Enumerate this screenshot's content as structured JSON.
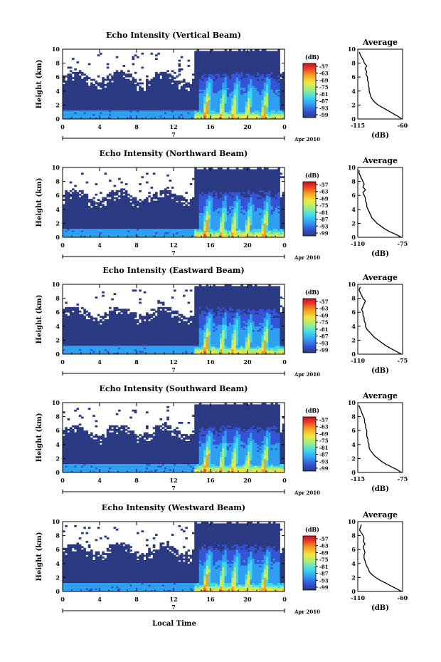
{
  "figure": {
    "xlabel": "Local Time",
    "colors": {
      "background_blue": "#2b3a82",
      "colormap": [
        "#2b3a82",
        "#3355d6",
        "#2f9ff2",
        "#3fd9ee",
        "#9ff07f",
        "#f5e640",
        "#f7a21e",
        "#e8412a",
        "#c4101c"
      ]
    }
  },
  "chart_data": [
    {
      "type": "heatmap",
      "title": "Echo Intensity (Vertical Beam)",
      "ylabel": "Height (km)",
      "ylim": [
        0,
        10
      ],
      "yticks": [
        "0",
        "2",
        "4",
        "6",
        "8",
        "10"
      ],
      "xlim": [
        0,
        24
      ],
      "xticks": [
        "0",
        "4",
        "8",
        "12",
        "16",
        "20",
        "0"
      ],
      "date_marker": "7",
      "date_label": "Apr 2010",
      "colorbar": {
        "label": "(dB)",
        "ticks": [
          "-57",
          "-63",
          "-69",
          "-75",
          "-81",
          "-87",
          "-93",
          "-99"
        ]
      },
      "profile": {
        "title": "Average",
        "xlabel": "(dB)",
        "xlim": [
          -115,
          -60
        ],
        "xticks": [
          "-115",
          "-60"
        ],
        "ylim": [
          0,
          10
        ],
        "yticks": [
          "0",
          "2",
          "4",
          "6",
          "8",
          "10"
        ],
        "points": [
          [
            -61,
            0
          ],
          [
            -66,
            0.4
          ],
          [
            -72,
            0.8
          ],
          [
            -78,
            1.2
          ],
          [
            -84,
            1.6
          ],
          [
            -90,
            2.0
          ],
          [
            -94,
            2.4
          ],
          [
            -97,
            2.8
          ],
          [
            -99,
            3.2
          ],
          [
            -100,
            3.6
          ],
          [
            -101,
            4.0
          ],
          [
            -101,
            4.4
          ],
          [
            -102,
            4.8
          ],
          [
            -102,
            5.2
          ],
          [
            -103,
            5.6
          ],
          [
            -103,
            6.0
          ],
          [
            -105,
            6.4
          ],
          [
            -104,
            6.8
          ],
          [
            -106,
            7.2
          ],
          [
            -104,
            7.6
          ],
          [
            -107,
            8.0
          ],
          [
            -108,
            8.4
          ],
          [
            -110,
            8.8
          ],
          [
            -112,
            9.2
          ],
          [
            -113,
            9.6
          ]
        ]
      }
    },
    {
      "type": "heatmap",
      "title": "Echo Intensity (Northward Beam)",
      "ylabel": "Height (km)",
      "ylim": [
        0,
        10
      ],
      "yticks": [
        "0",
        "2",
        "4",
        "6",
        "8",
        "10"
      ],
      "xlim": [
        0,
        24
      ],
      "xticks": [
        "0",
        "4",
        "8",
        "12",
        "16",
        "20",
        "0"
      ],
      "date_marker": "7",
      "date_label": "Apr 2010",
      "colorbar": {
        "label": "(dB)",
        "ticks": [
          "-57",
          "-63",
          "-69",
          "-75",
          "-81",
          "-87",
          "-93",
          "-99"
        ]
      },
      "profile": {
        "title": "Average",
        "xlabel": "(dB)",
        "xlim": [
          -110,
          -75
        ],
        "xticks": [
          "-110",
          "-75"
        ],
        "ylim": [
          0,
          10
        ],
        "yticks": [
          "0",
          "2",
          "4",
          "6",
          "8",
          "10"
        ],
        "points": [
          [
            -76,
            0
          ],
          [
            -80,
            0.4
          ],
          [
            -85,
            0.8
          ],
          [
            -89,
            1.2
          ],
          [
            -92,
            1.6
          ],
          [
            -95,
            2.0
          ],
          [
            -97,
            2.4
          ],
          [
            -99,
            2.8
          ],
          [
            -100,
            3.2
          ],
          [
            -101,
            3.6
          ],
          [
            -102,
            4.0
          ],
          [
            -103,
            4.4
          ],
          [
            -103,
            4.8
          ],
          [
            -104,
            5.2
          ],
          [
            -104,
            5.6
          ],
          [
            -105,
            6.0
          ],
          [
            -106,
            6.4
          ],
          [
            -104,
            6.8
          ],
          [
            -106,
            7.2
          ],
          [
            -105,
            7.6
          ],
          [
            -106,
            8.0
          ],
          [
            -107,
            8.4
          ],
          [
            -108,
            8.8
          ],
          [
            -109,
            9.2
          ],
          [
            -109,
            9.6
          ]
        ]
      }
    },
    {
      "type": "heatmap",
      "title": "Echo Intensity (Eastward Beam)",
      "ylabel": "Height (km)",
      "ylim": [
        0,
        10
      ],
      "yticks": [
        "0",
        "2",
        "4",
        "6",
        "8",
        "10"
      ],
      "xlim": [
        0,
        24
      ],
      "xticks": [
        "0",
        "4",
        "8",
        "12",
        "16",
        "20",
        "0"
      ],
      "date_marker": "7",
      "date_label": "Apr 2010",
      "colorbar": {
        "label": "(dB)",
        "ticks": [
          "-57",
          "-63",
          "-69",
          "-75",
          "-81",
          "-87",
          "-93",
          "-99"
        ]
      },
      "profile": {
        "title": "Average",
        "xlabel": "(dB)",
        "xlim": [
          -110,
          -75
        ],
        "xticks": [
          "-110",
          "-75"
        ],
        "ylim": [
          0,
          10
        ],
        "yticks": [
          "0",
          "2",
          "4",
          "6",
          "8",
          "10"
        ],
        "points": [
          [
            -76,
            0
          ],
          [
            -80,
            0.4
          ],
          [
            -84,
            0.8
          ],
          [
            -88,
            1.2
          ],
          [
            -91,
            1.6
          ],
          [
            -94,
            2.0
          ],
          [
            -97,
            2.4
          ],
          [
            -99,
            2.8
          ],
          [
            -101,
            3.2
          ],
          [
            -103,
            3.6
          ],
          [
            -104,
            4.0
          ],
          [
            -104,
            4.4
          ],
          [
            -105,
            4.8
          ],
          [
            -105,
            5.2
          ],
          [
            -106,
            5.6
          ],
          [
            -106,
            6.0
          ],
          [
            -107,
            6.4
          ],
          [
            -106,
            6.8
          ],
          [
            -105,
            7.2
          ],
          [
            -104,
            7.6
          ],
          [
            -106,
            8.0
          ],
          [
            -107,
            8.4
          ],
          [
            -108,
            8.8
          ],
          [
            -109,
            9.2
          ],
          [
            -108,
            9.6
          ]
        ]
      }
    },
    {
      "type": "heatmap",
      "title": "Echo Intensity (Southward Beam)",
      "ylabel": "Height (km)",
      "ylim": [
        0,
        10
      ],
      "yticks": [
        "0",
        "2",
        "4",
        "6",
        "8",
        "10"
      ],
      "xlim": [
        0,
        24
      ],
      "xticks": [
        "0",
        "4",
        "8",
        "12",
        "16",
        "20",
        "0"
      ],
      "date_marker": "7",
      "date_label": "Apr 2010",
      "colorbar": {
        "label": "(dB)",
        "ticks": [
          "-57",
          "-63",
          "-69",
          "-75",
          "-81",
          "-87",
          "-93",
          "-99"
        ]
      },
      "profile": {
        "title": "Average",
        "xlabel": "(dB)",
        "xlim": [
          -115,
          -75
        ],
        "xticks": [
          "-115",
          "-75"
        ],
        "ylim": [
          0,
          10
        ],
        "yticks": [
          "0",
          "2",
          "4",
          "6",
          "8",
          "10"
        ],
        "points": [
          [
            -76,
            0
          ],
          [
            -80,
            0.4
          ],
          [
            -85,
            0.8
          ],
          [
            -90,
            1.2
          ],
          [
            -94,
            1.6
          ],
          [
            -97,
            2.0
          ],
          [
            -100,
            2.4
          ],
          [
            -102,
            2.8
          ],
          [
            -104,
            3.2
          ],
          [
            -105,
            3.6
          ],
          [
            -105,
            4.0
          ],
          [
            -106,
            4.4
          ],
          [
            -106,
            4.8
          ],
          [
            -107,
            5.2
          ],
          [
            -107,
            5.6
          ],
          [
            -107,
            6.0
          ],
          [
            -108,
            6.4
          ],
          [
            -108,
            6.8
          ],
          [
            -109,
            7.2
          ],
          [
            -109,
            7.6
          ],
          [
            -110,
            8.0
          ],
          [
            -111,
            8.4
          ],
          [
            -112,
            8.8
          ],
          [
            -113,
            9.2
          ],
          [
            -114,
            9.6
          ]
        ]
      }
    },
    {
      "type": "heatmap",
      "title": "Echo Intensity (Westward Beam)",
      "ylabel": "Height (km)",
      "ylim": [
        0,
        10
      ],
      "yticks": [
        "0",
        "2",
        "4",
        "6",
        "8",
        "10"
      ],
      "xlim": [
        0,
        24
      ],
      "xticks": [
        "0",
        "4",
        "8",
        "12",
        "16",
        "20",
        "0"
      ],
      "date_marker": "7",
      "date_label": "Apr 2010",
      "colorbar": {
        "label": "(dB)",
        "ticks": [
          "-57",
          "-63",
          "-69",
          "-75",
          "-81",
          "-87",
          "-93",
          "-99"
        ]
      },
      "profile": {
        "title": "Average",
        "xlabel": "(dB)",
        "xlim": [
          -110,
          -60
        ],
        "xticks": [
          "-110",
          "-60"
        ],
        "ylim": [
          0,
          10
        ],
        "yticks": [
          "0",
          "2",
          "4",
          "6",
          "8",
          "10"
        ],
        "points": [
          [
            -61,
            0
          ],
          [
            -67,
            0.4
          ],
          [
            -73,
            0.8
          ],
          [
            -79,
            1.2
          ],
          [
            -85,
            1.6
          ],
          [
            -90,
            2.0
          ],
          [
            -94,
            2.4
          ],
          [
            -97,
            2.8
          ],
          [
            -98,
            3.2
          ],
          [
            -100,
            3.6
          ],
          [
            -101,
            4.0
          ],
          [
            -102,
            4.4
          ],
          [
            -103,
            4.8
          ],
          [
            -103,
            5.2
          ],
          [
            -102,
            5.6
          ],
          [
            -103,
            6.0
          ],
          [
            -104,
            6.4
          ],
          [
            -102,
            6.8
          ],
          [
            -104,
            7.2
          ],
          [
            -103,
            7.6
          ],
          [
            -104,
            8.0
          ],
          [
            -106,
            8.4
          ],
          [
            -108,
            8.8
          ],
          [
            -107,
            9.2
          ],
          [
            -106,
            9.6
          ]
        ]
      }
    }
  ]
}
